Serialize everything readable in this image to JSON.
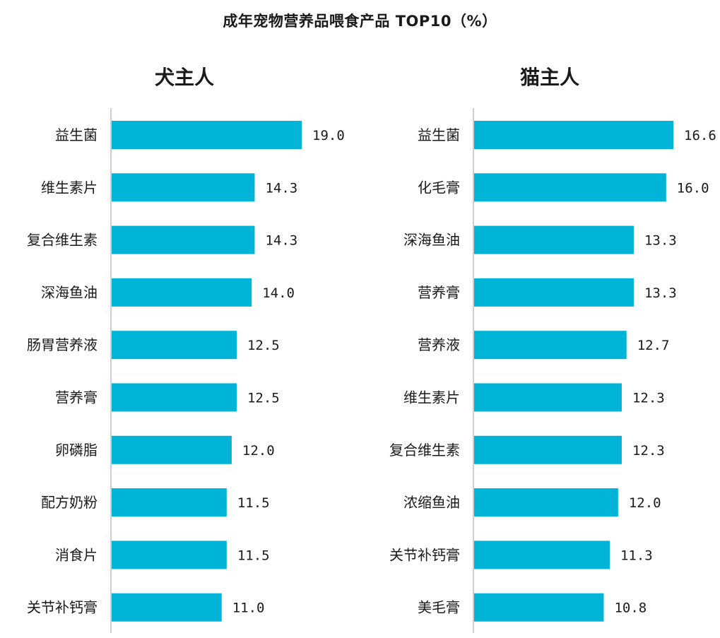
{
  "title": "成年宠物营养品喂食产品 TOP10（%）",
  "chart_data": [
    {
      "type": "bar",
      "orientation": "horizontal",
      "title": "犬主人",
      "categories": [
        "益生菌",
        "维生素片",
        "复合维生素",
        "深海鱼油",
        "肠胃营养液",
        "营养膏",
        "卵磷脂",
        "配方奶粉",
        "消食片",
        "关节补钙膏"
      ],
      "values": [
        19.0,
        14.3,
        14.3,
        14.0,
        12.5,
        12.5,
        12.0,
        11.5,
        11.5,
        11.0
      ],
      "value_labels": [
        "19.0",
        "14.3",
        "14.3",
        "14.0",
        "12.5",
        "12.5",
        "12.0",
        "11.5",
        "11.5",
        "11.0"
      ],
      "xlim": [
        0,
        19.0
      ],
      "grid": false,
      "color": "#00B4D8"
    },
    {
      "type": "bar",
      "orientation": "horizontal",
      "title": "猫主人",
      "categories": [
        "益生菌",
        "化毛膏",
        "深海鱼油",
        "营养膏",
        "营养液",
        "维生素片",
        "复合维生素",
        "浓缩鱼油",
        "关节补钙膏",
        "美毛膏"
      ],
      "values": [
        16.6,
        16.0,
        13.3,
        13.3,
        12.7,
        12.3,
        12.3,
        12.0,
        11.3,
        10.8
      ],
      "value_labels": [
        "16.6",
        "16.0",
        "13.3",
        "13.3",
        "12.7",
        "12.3",
        "12.3",
        "12.0",
        "11.3",
        "10.8"
      ],
      "xlim": [
        0,
        16.6
      ],
      "grid": false,
      "color": "#00B4D8"
    }
  ]
}
